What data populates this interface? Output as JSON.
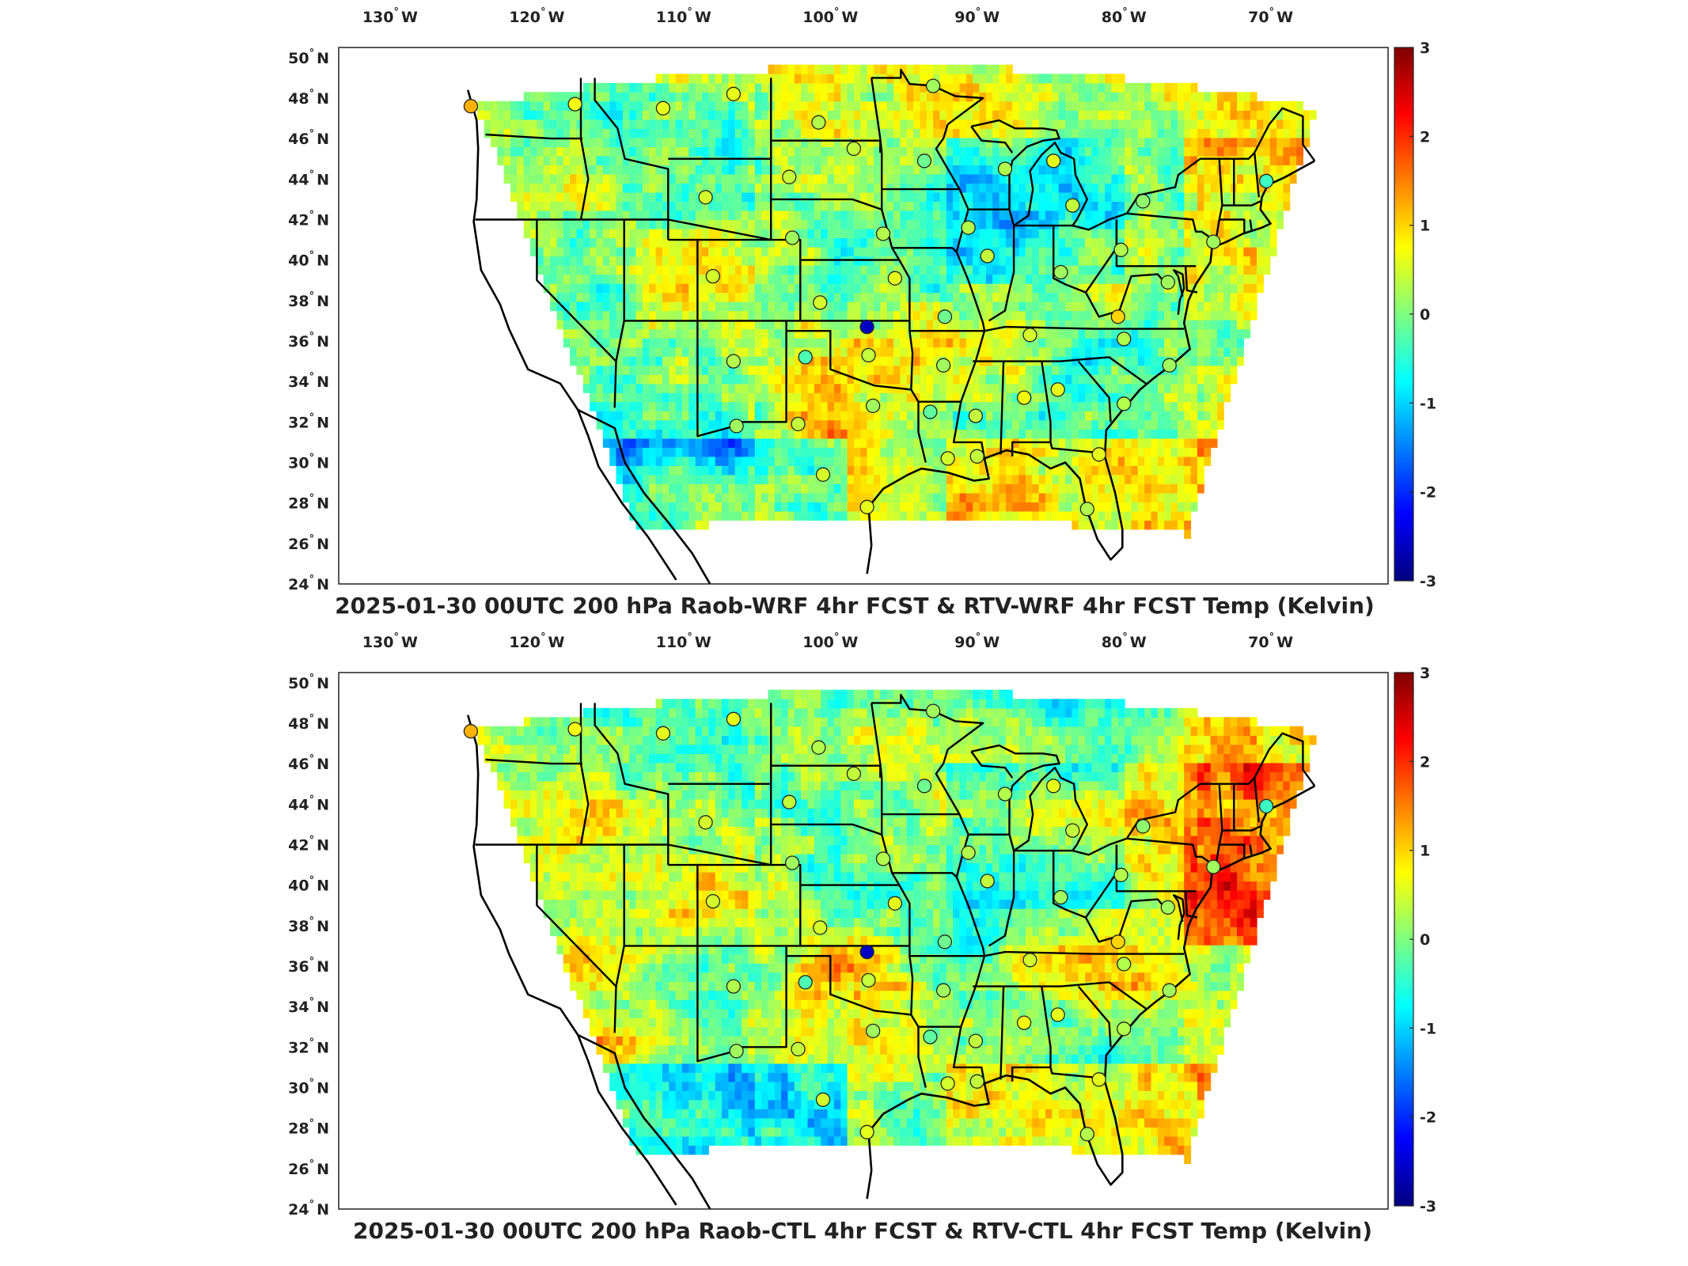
{
  "colormap": {
    "name": "jet",
    "stops": [
      "#00007f",
      "#0000ff",
      "#007fff",
      "#00ffff",
      "#7fff7f",
      "#ffff00",
      "#ff7f00",
      "#ff0000",
      "#7f0000"
    ]
  },
  "panels": [
    {
      "title": "2025-01-30 00UTC 200 hPa Raob-WRF 4hr FCST & RTV-WRF 4hr FCST Temp (Kelvin)",
      "seed": 11
    },
    {
      "title": "2025-01-30 00UTC 200 hPa Raob-CTL 4hr FCST & RTV-CTL 4hr FCST Temp (Kelvin)",
      "seed": 23
    }
  ],
  "lon_ticks": [
    {
      "lon": -130,
      "label": "130",
      "hemi": "W"
    },
    {
      "lon": -120,
      "label": "120",
      "hemi": "W"
    },
    {
      "lon": -110,
      "label": "110",
      "hemi": "W"
    },
    {
      "lon": -100,
      "label": "100",
      "hemi": "W"
    },
    {
      "lon": -90,
      "label": "90",
      "hemi": "W"
    },
    {
      "lon": -80,
      "label": "80",
      "hemi": "W"
    },
    {
      "lon": -70,
      "label": "70",
      "hemi": "W"
    }
  ],
  "lat_ticks": [
    {
      "lat": 50,
      "label": "50",
      "hemi": "N"
    },
    {
      "lat": 48,
      "label": "48",
      "hemi": "N"
    },
    {
      "lat": 46,
      "label": "46",
      "hemi": "N"
    },
    {
      "lat": 44,
      "label": "44",
      "hemi": "N"
    },
    {
      "lat": 42,
      "label": "42",
      "hemi": "N"
    },
    {
      "lat": 40,
      "label": "40",
      "hemi": "N"
    },
    {
      "lat": 38,
      "label": "38",
      "hemi": "N"
    },
    {
      "lat": 36,
      "label": "36",
      "hemi": "N"
    },
    {
      "lat": 34,
      "label": "34",
      "hemi": "N"
    },
    {
      "lat": 32,
      "label": "32",
      "hemi": "N"
    },
    {
      "lat": 30,
      "label": "30",
      "hemi": "N"
    },
    {
      "lat": 28,
      "label": "28",
      "hemi": "N"
    },
    {
      "lat": 26,
      "label": "26",
      "hemi": "N"
    },
    {
      "lat": 24,
      "label": "24",
      "hemi": "N"
    }
  ],
  "colorbar": {
    "min": -3,
    "max": 3,
    "ticks": [
      {
        "value": 3,
        "label": "3"
      },
      {
        "value": 2,
        "label": "2"
      },
      {
        "value": 1,
        "label": "1"
      },
      {
        "value": 0,
        "label": "0"
      },
      {
        "value": -1,
        "label": "-1"
      },
      {
        "value": -2,
        "label": "-2"
      },
      {
        "value": -3,
        "label": "-3"
      }
    ]
  },
  "stations": [
    {
      "lon": -124.5,
      "lat": 47.6,
      "v": 1.2
    },
    {
      "lon": -117.4,
      "lat": 47.7,
      "v": 0.7
    },
    {
      "lon": -111.4,
      "lat": 47.5,
      "v": 0.6
    },
    {
      "lon": -106.6,
      "lat": 48.2,
      "v": 0.6
    },
    {
      "lon": -100.8,
      "lat": 46.8,
      "v": 0.3
    },
    {
      "lon": -93.0,
      "lat": 48.6,
      "v": 0.2
    },
    {
      "lon": -98.4,
      "lat": 45.5,
      "v": 0.4
    },
    {
      "lon": -93.6,
      "lat": 44.9,
      "v": -0.1
    },
    {
      "lon": -88.1,
      "lat": 44.5,
      "v": 0.3
    },
    {
      "lon": -84.8,
      "lat": 44.9,
      "v": 0.6
    },
    {
      "lon": -83.5,
      "lat": 42.7,
      "v": 0.4
    },
    {
      "lon": -78.7,
      "lat": 42.9,
      "v": 0.1
    },
    {
      "lon": -102.8,
      "lat": 44.1,
      "v": 0.4
    },
    {
      "lon": -108.5,
      "lat": 43.1,
      "v": 0.5
    },
    {
      "lon": -102.6,
      "lat": 41.1,
      "v": 0.2
    },
    {
      "lon": -96.4,
      "lat": 41.3,
      "v": 0.3
    },
    {
      "lon": -90.6,
      "lat": 41.6,
      "v": 0.3
    },
    {
      "lon": -89.3,
      "lat": 40.2,
      "v": 0.4
    },
    {
      "lon": -84.3,
      "lat": 39.4,
      "v": 0.2
    },
    {
      "lon": -80.2,
      "lat": 40.5,
      "v": 0.3
    },
    {
      "lon": -108.0,
      "lat": 39.2,
      "v": 0.5
    },
    {
      "lon": -100.7,
      "lat": 37.9,
      "v": 0.5
    },
    {
      "lon": -95.6,
      "lat": 39.1,
      "v": 0.6
    },
    {
      "lon": -92.2,
      "lat": 37.2,
      "v": -0.1
    },
    {
      "lon": -86.4,
      "lat": 36.3,
      "v": 0.5
    },
    {
      "lon": -80.4,
      "lat": 37.2,
      "v": 1.0
    },
    {
      "lon": -77.0,
      "lat": 38.9,
      "v": 0.2
    },
    {
      "lon": -80.0,
      "lat": 36.1,
      "v": 0.3
    },
    {
      "lon": -97.5,
      "lat": 36.7,
      "v": -2.6
    },
    {
      "lon": -97.4,
      "lat": 35.3,
      "v": 0.4
    },
    {
      "lon": -101.7,
      "lat": 35.2,
      "v": -0.3
    },
    {
      "lon": -106.6,
      "lat": 35.0,
      "v": 0.3
    },
    {
      "lon": -92.3,
      "lat": 34.8,
      "v": 0.2
    },
    {
      "lon": -86.8,
      "lat": 33.2,
      "v": 0.7
    },
    {
      "lon": -84.5,
      "lat": 33.6,
      "v": 0.6
    },
    {
      "lon": -80.0,
      "lat": 32.9,
      "v": 0.3
    },
    {
      "lon": -76.9,
      "lat": 34.8,
      "v": 0.2
    },
    {
      "lon": -90.1,
      "lat": 32.3,
      "v": 0.4
    },
    {
      "lon": -97.1,
      "lat": 32.8,
      "v": 0.2
    },
    {
      "lon": -102.2,
      "lat": 31.9,
      "v": 0.4
    },
    {
      "lon": -106.4,
      "lat": 31.8,
      "v": 0.2
    },
    {
      "lon": -93.2,
      "lat": 32.5,
      "v": -0.2
    },
    {
      "lon": -100.5,
      "lat": 29.4,
      "v": 0.5
    },
    {
      "lon": -97.5,
      "lat": 27.8,
      "v": 0.6
    },
    {
      "lon": -92.0,
      "lat": 30.2,
      "v": 0.5
    },
    {
      "lon": -90.0,
      "lat": 30.3,
      "v": 0.4
    },
    {
      "lon": -81.7,
      "lat": 30.4,
      "v": 0.6
    },
    {
      "lon": -82.5,
      "lat": 27.7,
      "v": 0.3
    },
    {
      "lon": -70.3,
      "lat": 43.9,
      "v": -0.4
    },
    {
      "lon": -73.9,
      "lat": 40.9,
      "v": 0.2
    }
  ]
}
